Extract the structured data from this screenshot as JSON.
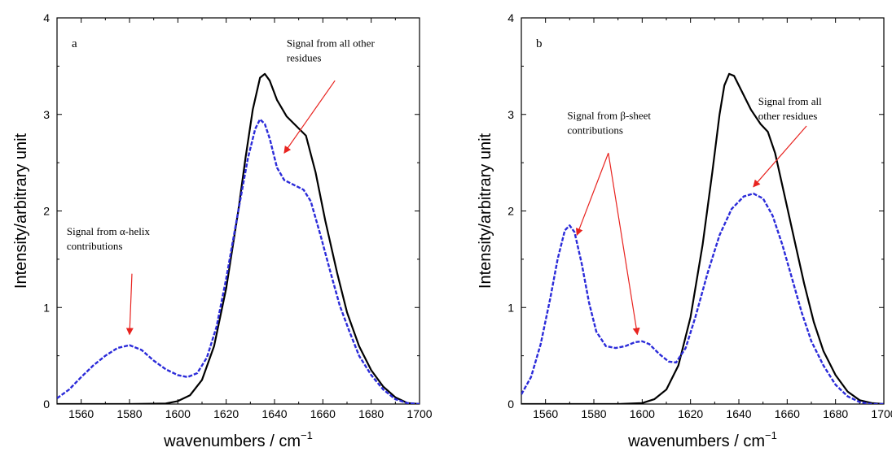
{
  "chart_data": [
    {
      "type": "line",
      "panel_label": "a",
      "xlabel": "wavenumbers / cm",
      "xlabel_sup": "−1",
      "ylabel": "Intensity/arbitrary unit",
      "xlim": [
        1550,
        1700
      ],
      "ylim": [
        0,
        4
      ],
      "xticks": [
        1560,
        1580,
        1600,
        1620,
        1640,
        1660,
        1680,
        1700
      ],
      "yticks": [
        0,
        1,
        2,
        3,
        4
      ],
      "grid": false,
      "series": [
        {
          "style": "solid",
          "color": "#000000",
          "points": [
            [
              1550,
              0
            ],
            [
              1570,
              0
            ],
            [
              1580,
              0
            ],
            [
              1590,
              0.003
            ],
            [
              1595,
              0.006
            ],
            [
              1600,
              0.03
            ],
            [
              1605,
              0.09
            ],
            [
              1610,
              0.25
            ],
            [
              1615,
              0.6
            ],
            [
              1620,
              1.2
            ],
            [
              1625,
              2.0
            ],
            [
              1628,
              2.55
            ],
            [
              1631,
              3.05
            ],
            [
              1634,
              3.38
            ],
            [
              1636,
              3.42
            ],
            [
              1638,
              3.35
            ],
            [
              1641,
              3.15
            ],
            [
              1645,
              2.98
            ],
            [
              1649,
              2.88
            ],
            [
              1653,
              2.78
            ],
            [
              1657,
              2.4
            ],
            [
              1661,
              1.9
            ],
            [
              1666,
              1.35
            ],
            [
              1670,
              0.95
            ],
            [
              1675,
              0.6
            ],
            [
              1680,
              0.35
            ],
            [
              1685,
              0.18
            ],
            [
              1690,
              0.07
            ],
            [
              1695,
              0.01
            ],
            [
              1700,
              0
            ]
          ]
        },
        {
          "style": "dashed",
          "color": "#2b2bd9",
          "points": [
            [
              1550,
              0.06
            ],
            [
              1555,
              0.15
            ],
            [
              1560,
              0.28
            ],
            [
              1565,
              0.4
            ],
            [
              1570,
              0.5
            ],
            [
              1575,
              0.58
            ],
            [
              1580,
              0.61
            ],
            [
              1585,
              0.56
            ],
            [
              1590,
              0.45
            ],
            [
              1595,
              0.36
            ],
            [
              1600,
              0.3
            ],
            [
              1604,
              0.28
            ],
            [
              1608,
              0.32
            ],
            [
              1612,
              0.48
            ],
            [
              1616,
              0.8
            ],
            [
              1620,
              1.3
            ],
            [
              1625,
              2.0
            ],
            [
              1629,
              2.55
            ],
            [
              1632,
              2.85
            ],
            [
              1634,
              2.95
            ],
            [
              1636,
              2.9
            ],
            [
              1638,
              2.75
            ],
            [
              1641,
              2.45
            ],
            [
              1644,
              2.32
            ],
            [
              1648,
              2.27
            ],
            [
              1652,
              2.22
            ],
            [
              1655,
              2.1
            ],
            [
              1659,
              1.75
            ],
            [
              1663,
              1.38
            ],
            [
              1667,
              1.02
            ],
            [
              1671,
              0.75
            ],
            [
              1675,
              0.5
            ],
            [
              1680,
              0.3
            ],
            [
              1685,
              0.15
            ],
            [
              1690,
              0.05
            ],
            [
              1695,
              0.01
            ],
            [
              1700,
              0
            ]
          ]
        }
      ],
      "annotations": [
        {
          "lines": [
            "Signal from α-helix",
            "contributions"
          ],
          "text_at": [
            1554,
            1.75
          ],
          "arrows": [
            {
              "from": [
                1581,
                1.35
              ],
              "to": [
                1580,
                0.72
              ]
            }
          ]
        },
        {
          "lines": [
            "Signal from all other",
            "residues"
          ],
          "text_at": [
            1645,
            3.7
          ],
          "arrows": [
            {
              "from": [
                1665,
                3.35
              ],
              "to": [
                1644,
                2.6
              ]
            }
          ]
        }
      ]
    },
    {
      "type": "line",
      "panel_label": "b",
      "xlabel": "wavenumbers / cm",
      "xlabel_sup": "−1",
      "ylabel": "Intensity/arbitrary unit",
      "xlim": [
        1550,
        1700
      ],
      "ylim": [
        0,
        4
      ],
      "xticks": [
        1560,
        1580,
        1600,
        1620,
        1640,
        1660,
        1680,
        1700
      ],
      "yticks": [
        0,
        1,
        2,
        3,
        4
      ],
      "grid": false,
      "series": [
        {
          "style": "solid",
          "color": "#000000",
          "points": [
            [
              1550,
              0
            ],
            [
              1570,
              0
            ],
            [
              1590,
              0
            ],
            [
              1600,
              0.01
            ],
            [
              1605,
              0.05
            ],
            [
              1610,
              0.15
            ],
            [
              1615,
              0.4
            ],
            [
              1620,
              0.9
            ],
            [
              1625,
              1.65
            ],
            [
              1629,
              2.4
            ],
            [
              1632,
              3.0
            ],
            [
              1634,
              3.3
            ],
            [
              1636,
              3.42
            ],
            [
              1638,
              3.4
            ],
            [
              1641,
              3.25
            ],
            [
              1645,
              3.05
            ],
            [
              1649,
              2.9
            ],
            [
              1652,
              2.82
            ],
            [
              1655,
              2.6
            ],
            [
              1659,
              2.15
            ],
            [
              1663,
              1.7
            ],
            [
              1667,
              1.25
            ],
            [
              1671,
              0.85
            ],
            [
              1675,
              0.55
            ],
            [
              1680,
              0.3
            ],
            [
              1685,
              0.13
            ],
            [
              1690,
              0.04
            ],
            [
              1695,
              0.01
            ],
            [
              1700,
              0
            ]
          ]
        },
        {
          "style": "dashed",
          "color": "#2b2bd9",
          "points": [
            [
              1550,
              0.1
            ],
            [
              1554,
              0.28
            ],
            [
              1558,
              0.62
            ],
            [
              1562,
              1.1
            ],
            [
              1565,
              1.5
            ],
            [
              1568,
              1.8
            ],
            [
              1570,
              1.85
            ],
            [
              1572,
              1.78
            ],
            [
              1575,
              1.45
            ],
            [
              1578,
              1.05
            ],
            [
              1581,
              0.75
            ],
            [
              1585,
              0.6
            ],
            [
              1589,
              0.58
            ],
            [
              1593,
              0.6
            ],
            [
              1597,
              0.64
            ],
            [
              1600,
              0.65
            ],
            [
              1603,
              0.62
            ],
            [
              1607,
              0.52
            ],
            [
              1611,
              0.44
            ],
            [
              1614,
              0.43
            ],
            [
              1618,
              0.58
            ],
            [
              1622,
              0.9
            ],
            [
              1627,
              1.35
            ],
            [
              1632,
              1.75
            ],
            [
              1637,
              2.02
            ],
            [
              1642,
              2.15
            ],
            [
              1646,
              2.18
            ],
            [
              1650,
              2.13
            ],
            [
              1654,
              1.95
            ],
            [
              1658,
              1.65
            ],
            [
              1662,
              1.3
            ],
            [
              1666,
              0.95
            ],
            [
              1670,
              0.65
            ],
            [
              1675,
              0.4
            ],
            [
              1680,
              0.2
            ],
            [
              1685,
              0.08
            ],
            [
              1690,
              0.02
            ],
            [
              1695,
              0
            ],
            [
              1700,
              0
            ]
          ]
        }
      ],
      "annotations": [
        {
          "lines": [
            "Signal from β-sheet",
            "contributions"
          ],
          "text_at": [
            1569,
            2.95
          ],
          "arrows": [
            {
              "from": [
                1586,
                2.6
              ],
              "to": [
                1573,
                1.75
              ]
            },
            {
              "from": [
                1586,
                2.6
              ],
              "to": [
                1598,
                0.72
              ]
            }
          ]
        },
        {
          "lines": [
            "Signal from all",
            "other residues"
          ],
          "text_at": [
            1648,
            3.1
          ],
          "arrows": [
            {
              "from": [
                1668,
                2.88
              ],
              "to": [
                1646,
                2.25
              ]
            }
          ]
        }
      ]
    }
  ]
}
